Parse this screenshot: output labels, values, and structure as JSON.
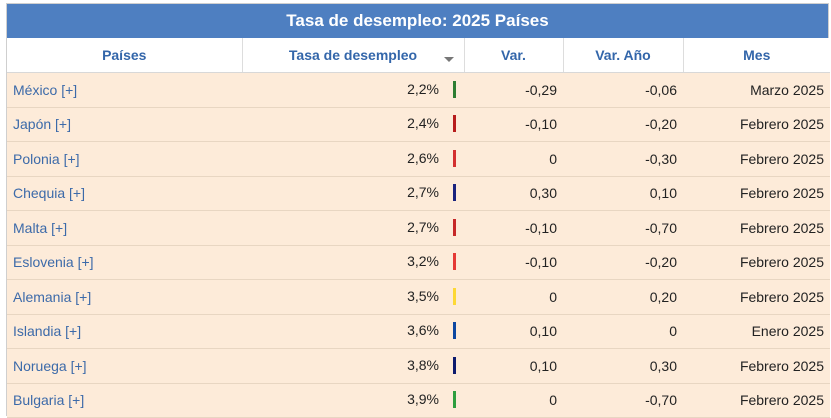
{
  "title": "Tasa de desempleo: 2025 Países",
  "columns": {
    "country": "Países",
    "rate": "Tasa de desempleo",
    "var": "Var.",
    "var_year": "Var. Año",
    "month": "Mes"
  },
  "rows": [
    {
      "country": "México [+]",
      "rate": "2,2%",
      "var": "-0,29",
      "var_year": "-0,06",
      "month": "Marzo 2025",
      "flag_color": "#2e7d32"
    },
    {
      "country": "Japón [+]",
      "rate": "2,4%",
      "var": "-0,10",
      "var_year": "-0,20",
      "month": "Febrero 2025",
      "flag_color": "#b71c1c"
    },
    {
      "country": "Polonia [+]",
      "rate": "2,6%",
      "var": "0",
      "var_year": "-0,30",
      "month": "Febrero 2025",
      "flag_color": "#d32f2f"
    },
    {
      "country": "Chequia [+]",
      "rate": "2,7%",
      "var": "0,30",
      "var_year": "0,10",
      "month": "Febrero 2025",
      "flag_color": "#1a237e"
    },
    {
      "country": "Malta [+]",
      "rate": "2,7%",
      "var": "-0,10",
      "var_year": "-0,70",
      "month": "Febrero 2025",
      "flag_color": "#c62828"
    },
    {
      "country": "Eslovenia [+]",
      "rate": "3,2%",
      "var": "-0,10",
      "var_year": "-0,20",
      "month": "Febrero 2025",
      "flag_color": "#e53935"
    },
    {
      "country": "Alemania [+]",
      "rate": "3,5%",
      "var": "0",
      "var_year": "0,20",
      "month": "Febrero 2025",
      "flag_color": "#fdd835"
    },
    {
      "country": "Islandia [+]",
      "rate": "3,6%",
      "var": "0,10",
      "var_year": "0",
      "month": "Enero 2025",
      "flag_color": "#0d47a1"
    },
    {
      "country": "Noruega [+]",
      "rate": "3,8%",
      "var": "0,10",
      "var_year": "0,30",
      "month": "Febrero 2025",
      "flag_color": "#0d1b6e"
    },
    {
      "country": "Bulgaria [+]",
      "rate": "3,9%",
      "var": "0",
      "var_year": "-0,70",
      "month": "Febrero 2025",
      "flag_color": "#2e9e3e"
    }
  ]
}
